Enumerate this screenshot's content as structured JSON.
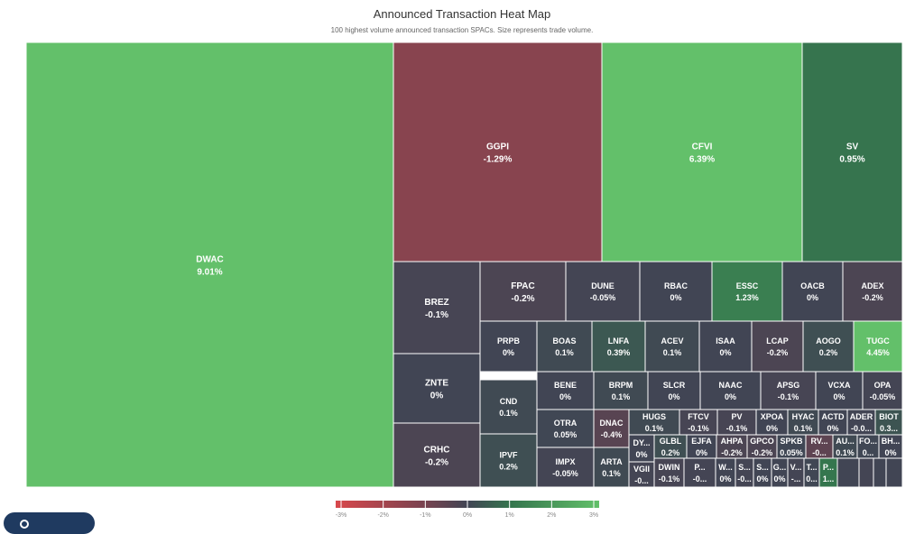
{
  "header": {
    "title": "Announced Transaction Heat Map",
    "subtitle": "100 highest volume announced transaction SPACs. Size represents trade volume."
  },
  "colors": {
    "neg3": "#d8484c",
    "neg1": "#7a4350",
    "zero": "#414554",
    "pos1": "#35764e",
    "pos3": "#63c06a",
    "border": "#ffffff"
  },
  "legend": {
    "ticks": [
      "-3%",
      "-2%",
      "-1%",
      "0%",
      "1%",
      "2%",
      "3%"
    ]
  },
  "chart_data": {
    "type": "heatmap",
    "title": "Announced Transaction Heat Map",
    "subtitle": "100 highest volume announced transaction SPACs. Size represents trade volume.",
    "color_scale": {
      "min": -3,
      "max": 3,
      "unit": "%"
    },
    "cells": [
      {
        "ticker": "DWAC",
        "change": "9.01%",
        "value": 9.01
      },
      {
        "ticker": "GGPI",
        "change": "-1.29%",
        "value": -1.29
      },
      {
        "ticker": "CFVI",
        "change": "6.39%",
        "value": 6.39
      },
      {
        "ticker": "SV",
        "change": "0.95%",
        "value": 0.95
      },
      {
        "ticker": "BREZ",
        "change": "-0.1%",
        "value": -0.1
      },
      {
        "ticker": "FPAC",
        "change": "-0.2%",
        "value": -0.2
      },
      {
        "ticker": "DUNE",
        "change": "-0.05%",
        "value": -0.05
      },
      {
        "ticker": "RBAC",
        "change": "0%",
        "value": 0
      },
      {
        "ticker": "ESSC",
        "change": "1.23%",
        "value": 1.23
      },
      {
        "ticker": "OACB",
        "change": "0%",
        "value": 0
      },
      {
        "ticker": "ADEX",
        "change": "-0.2%",
        "value": -0.2
      },
      {
        "ticker": "PRPB",
        "change": "0%",
        "value": 0
      },
      {
        "ticker": "BOAS",
        "change": "0.1%",
        "value": 0.1
      },
      {
        "ticker": "LNFA",
        "change": "0.39%",
        "value": 0.39
      },
      {
        "ticker": "ACEV",
        "change": "0.1%",
        "value": 0.1
      },
      {
        "ticker": "ISAA",
        "change": "0%",
        "value": 0
      },
      {
        "ticker": "LCAP",
        "change": "-0.2%",
        "value": -0.2
      },
      {
        "ticker": "AOGO",
        "change": "0.2%",
        "value": 0.2
      },
      {
        "ticker": "TUGC",
        "change": "4.45%",
        "value": 4.45
      },
      {
        "ticker": "ZNTE",
        "change": "0%",
        "value": 0
      },
      {
        "ticker": "BENE",
        "change": "0%",
        "value": 0
      },
      {
        "ticker": "BRPM",
        "change": "0.1%",
        "value": 0.1
      },
      {
        "ticker": "SLCR",
        "change": "0%",
        "value": 0
      },
      {
        "ticker": "NAAC",
        "change": "0%",
        "value": 0
      },
      {
        "ticker": "APSG",
        "change": "-0.1%",
        "value": -0.1
      },
      {
        "ticker": "VCXA",
        "change": "0%",
        "value": 0
      },
      {
        "ticker": "OPA",
        "change": "-0.05%",
        "value": -0.05
      },
      {
        "ticker": "CND",
        "change": "0.1%",
        "value": 0.1
      },
      {
        "ticker": "DNAC",
        "change": "-0.4%",
        "value": -0.4
      },
      {
        "ticker": "HUGS",
        "change": "0.1%",
        "value": 0.1
      },
      {
        "ticker": "FTCV",
        "change": "-0.1%",
        "value": -0.1
      },
      {
        "ticker": "PV",
        "change": "-0.1%",
        "value": -0.1
      },
      {
        "ticker": "XPOA",
        "change": "0%",
        "value": 0
      },
      {
        "ticker": "HYAC",
        "change": "0.1%",
        "value": 0.1
      },
      {
        "ticker": "ACTD",
        "change": "0%",
        "value": 0
      },
      {
        "ticker": "ADER",
        "change": "-0.0...",
        "value": -0.01
      },
      {
        "ticker": "BIOT",
        "change": "0.3...",
        "value": 0.3
      },
      {
        "ticker": "OTRA",
        "change": "0.05%",
        "value": 0.05
      },
      {
        "ticker": "CRHC",
        "change": "-0.2%",
        "value": -0.2
      },
      {
        "ticker": "DY...",
        "change": "0%",
        "value": 0
      },
      {
        "ticker": "GLBL",
        "change": "0.2%",
        "value": 0.2
      },
      {
        "ticker": "EJFA",
        "change": "0%",
        "value": 0
      },
      {
        "ticker": "AHPA",
        "change": "-0.2%",
        "value": -0.2
      },
      {
        "ticker": "GPCO",
        "change": "-0.2%",
        "value": -0.2
      },
      {
        "ticker": "SPKB",
        "change": "0.05%",
        "value": 0.05
      },
      {
        "ticker": "RV...",
        "change": "-0...",
        "value": -0.5
      },
      {
        "ticker": "AU...",
        "change": "0.1%",
        "value": 0.1
      },
      {
        "ticker": "FO...",
        "change": "0...",
        "value": 0.05
      },
      {
        "ticker": "BH...",
        "change": "0%",
        "value": 0
      },
      {
        "ticker": "IPVF",
        "change": "0.2%",
        "value": 0.2
      },
      {
        "ticker": "IMPX",
        "change": "-0.05%",
        "value": -0.05
      },
      {
        "ticker": "ARTA",
        "change": "0.1%",
        "value": 0.1
      },
      {
        "ticker": "VGII",
        "change": "-0...",
        "value": -0.05
      },
      {
        "ticker": "DWIN",
        "change": "-0.1%",
        "value": -0.1
      },
      {
        "ticker": "P...",
        "change": "-0...",
        "value": -0.05
      },
      {
        "ticker": "W...",
        "change": "0%",
        "value": 0
      },
      {
        "ticker": "S...",
        "change": "-0...",
        "value": -0.05
      },
      {
        "ticker": "S...",
        "change": "0%",
        "value": 0
      },
      {
        "ticker": "G...",
        "change": "0%",
        "value": 0
      },
      {
        "ticker": "V...",
        "change": "-...",
        "value": -0.05
      },
      {
        "ticker": "T...",
        "change": "0...",
        "value": 0.05
      },
      {
        "ticker": "P...",
        "change": "1...",
        "value": 1.0
      }
    ]
  }
}
